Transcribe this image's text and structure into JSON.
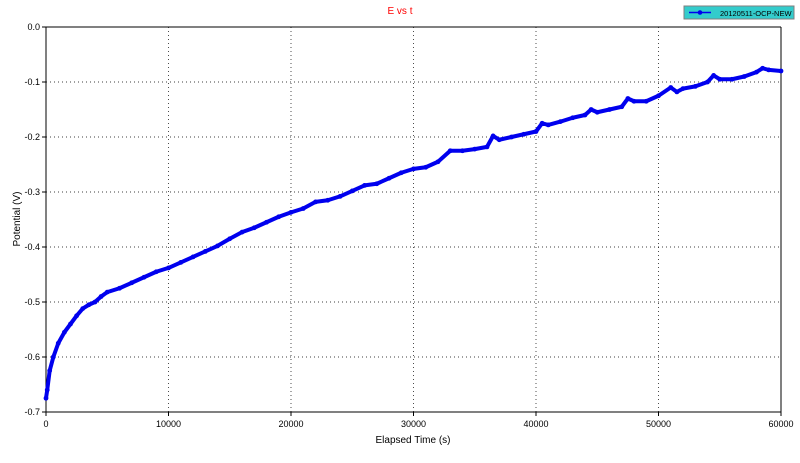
{
  "chart_data": {
    "type": "line",
    "title": "E vs t",
    "xlabel": "Elapsed Time (s)",
    "ylabel": "Potential (V)",
    "xlim": [
      0,
      60000
    ],
    "ylim": [
      -0.7,
      0.0
    ],
    "x_ticks": [
      0,
      10000,
      20000,
      30000,
      40000,
      50000,
      60000
    ],
    "y_ticks": [
      0.0,
      -0.1,
      -0.2,
      -0.3,
      -0.4,
      -0.5,
      -0.6,
      -0.7
    ],
    "x_tick_labels": [
      "0",
      "10000",
      "20000",
      "30000",
      "40000",
      "50000",
      "60000"
    ],
    "y_tick_labels": [
      "0.0",
      "-0.1",
      "-0.2",
      "-0.3",
      "-0.4",
      "-0.5",
      "-0.6",
      "-0.7"
    ],
    "grid": true,
    "legend_position": "top-right",
    "series": [
      {
        "name": "20120511-OCP-NEW",
        "color": "#0000ee",
        "marker": "circle",
        "x": [
          0,
          100,
          300,
          600,
          1000,
          1500,
          2000,
          2500,
          3000,
          3500,
          4000,
          4500,
          5000,
          6000,
          7000,
          8000,
          9000,
          10000,
          11000,
          12000,
          13000,
          14000,
          15000,
          16000,
          17000,
          18000,
          19000,
          20000,
          21000,
          22000,
          23000,
          24000,
          25000,
          26000,
          27000,
          28000,
          29000,
          30000,
          31000,
          32000,
          33000,
          34000,
          35000,
          36000,
          36500,
          37000,
          38000,
          39000,
          40000,
          40500,
          41000,
          42000,
          43000,
          44000,
          44500,
          45000,
          46000,
          47000,
          47500,
          48000,
          49000,
          50000,
          51000,
          51500,
          52000,
          53000,
          54000,
          54500,
          55000,
          56000,
          57000,
          58000,
          58500,
          59000,
          60000
        ],
        "y": [
          -0.675,
          -0.66,
          -0.625,
          -0.6,
          -0.575,
          -0.555,
          -0.54,
          -0.525,
          -0.512,
          -0.505,
          -0.5,
          -0.49,
          -0.482,
          -0.475,
          -0.465,
          -0.455,
          -0.445,
          -0.438,
          -0.428,
          -0.418,
          -0.408,
          -0.398,
          -0.385,
          -0.373,
          -0.365,
          -0.355,
          -0.345,
          -0.337,
          -0.33,
          -0.318,
          -0.315,
          -0.308,
          -0.298,
          -0.288,
          -0.285,
          -0.275,
          -0.265,
          -0.258,
          -0.255,
          -0.245,
          -0.225,
          -0.225,
          -0.222,
          -0.218,
          -0.198,
          -0.205,
          -0.2,
          -0.195,
          -0.19,
          -0.175,
          -0.178,
          -0.172,
          -0.165,
          -0.16,
          -0.15,
          -0.155,
          -0.15,
          -0.145,
          -0.13,
          -0.135,
          -0.135,
          -0.125,
          -0.11,
          -0.118,
          -0.112,
          -0.108,
          -0.1,
          -0.088,
          -0.095,
          -0.095,
          -0.09,
          -0.082,
          -0.075,
          -0.078,
          -0.08
        ]
      }
    ]
  }
}
